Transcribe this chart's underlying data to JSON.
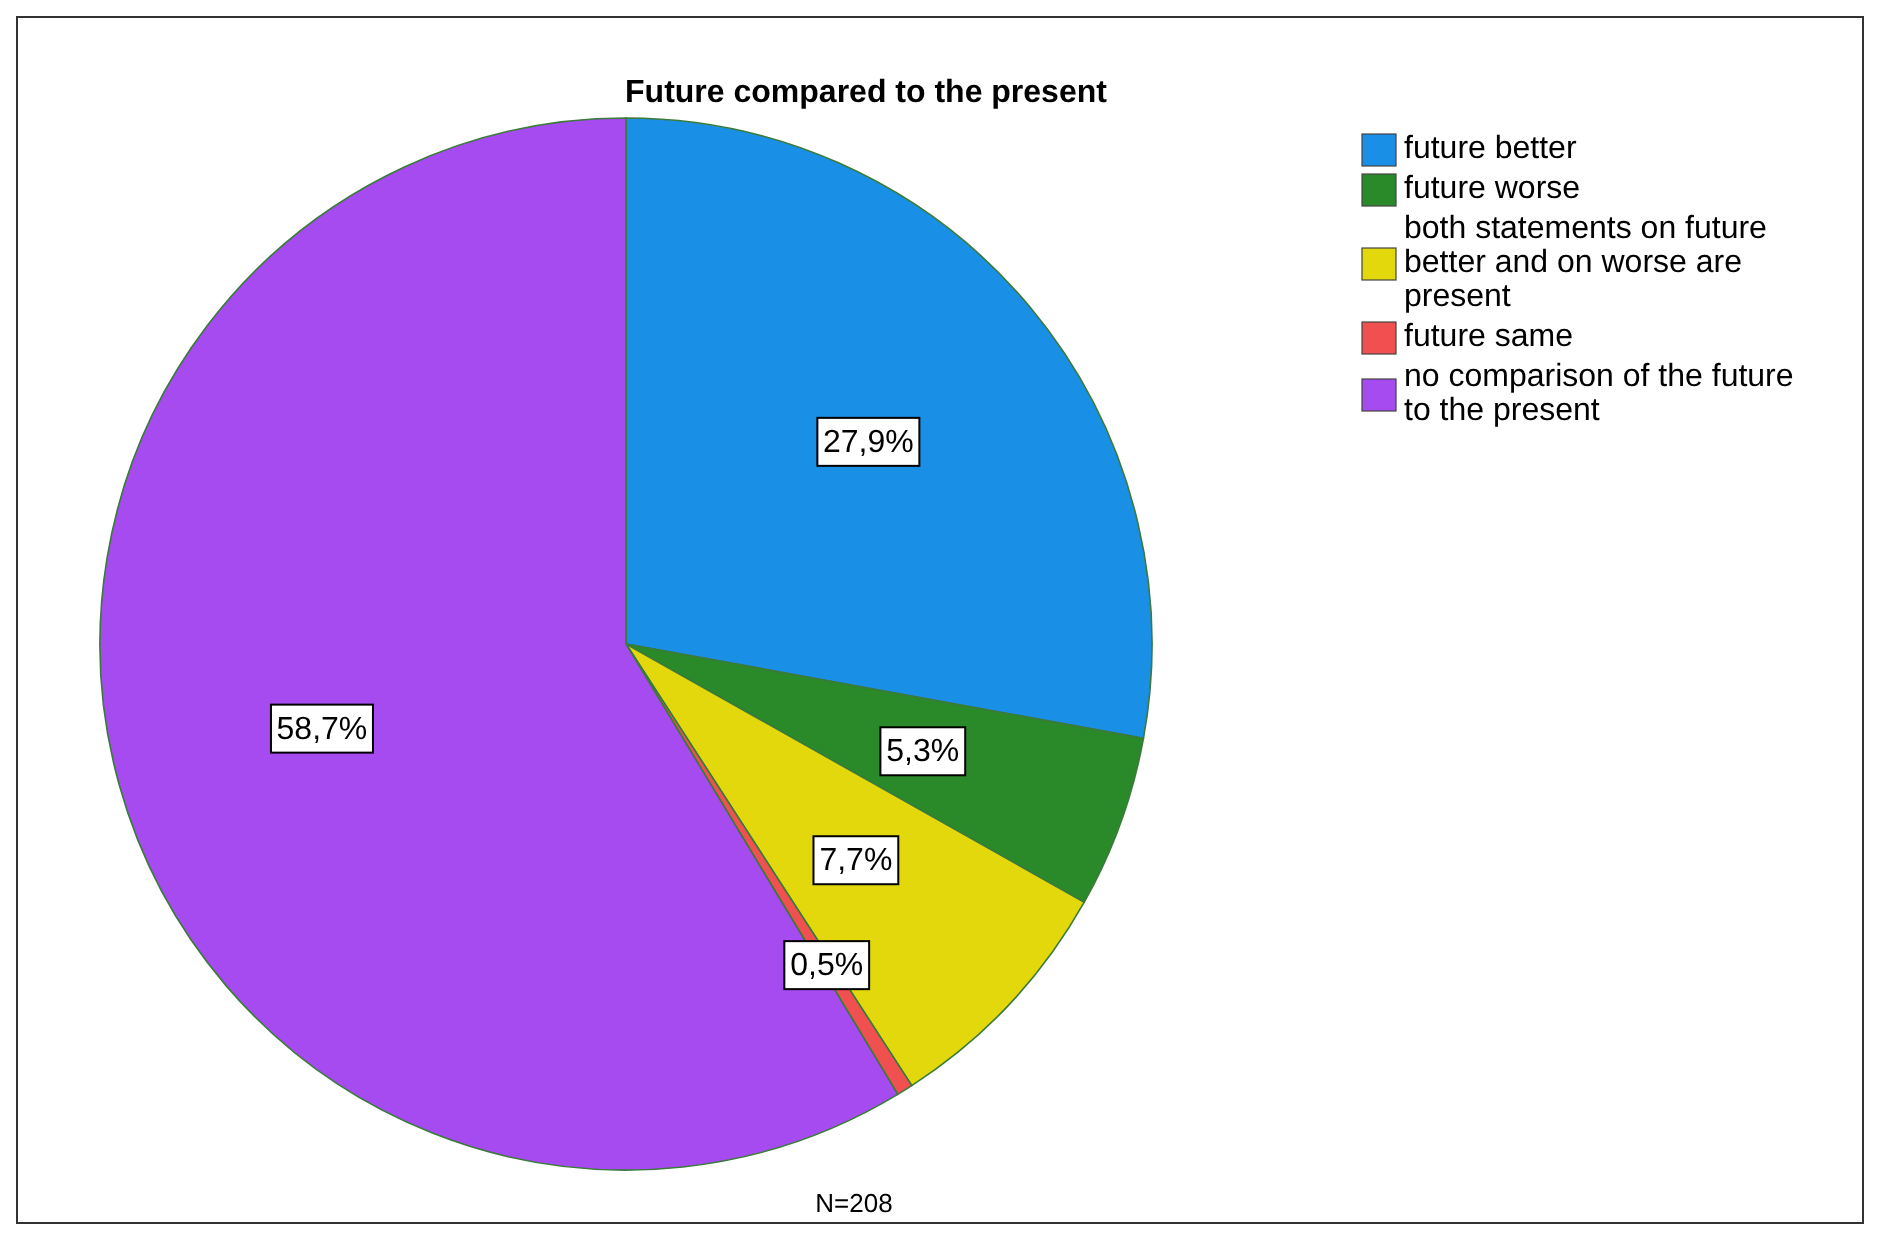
{
  "chart_data": {
    "type": "pie",
    "title": "Future compared to the present",
    "categories": [
      "future better",
      "future worse",
      "both statements on future better and on worse are present",
      "future same",
      "no comparison of the future to the present"
    ],
    "values": [
      27.9,
      5.3,
      7.7,
      0.5,
      58.7
    ],
    "value_labels": [
      "27,9%",
      "5,3%",
      "7,7%",
      "0,5%",
      "58,7%"
    ],
    "colors": [
      "#1a8fe6",
      "#2a8a2a",
      "#e2d80c",
      "#f05050",
      "#a64bf0"
    ],
    "legend": "right",
    "annotations": [
      "N=208"
    ]
  }
}
